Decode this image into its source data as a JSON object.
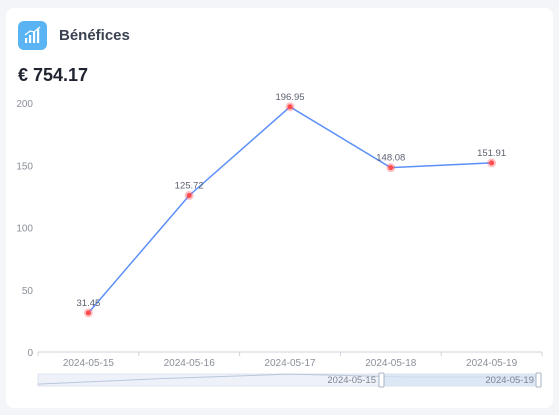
{
  "card": {
    "title": "Bénéfices",
    "total": "€ 754.17",
    "icon": "growth-chart-icon",
    "accent_color": "#5ab3f2"
  },
  "chart_data": {
    "type": "line",
    "title": "",
    "xlabel": "",
    "ylabel": "",
    "categories": [
      "2024-05-15",
      "2024-05-16",
      "2024-05-17",
      "2024-05-18",
      "2024-05-19"
    ],
    "series": [
      {
        "values": [
          31.45,
          125.72,
          196.95,
          148.08,
          151.91
        ]
      }
    ],
    "y_ticks": [
      0,
      50,
      100,
      150,
      200
    ],
    "ylim": [
      0,
      200
    ],
    "grid": false,
    "line_color": "#5b8ff9",
    "point_color": "#ff4d4f",
    "data_labels": true,
    "data_zoom": {
      "start_label": "2024-05-15",
      "end_label": "2024-05-19"
    }
  }
}
